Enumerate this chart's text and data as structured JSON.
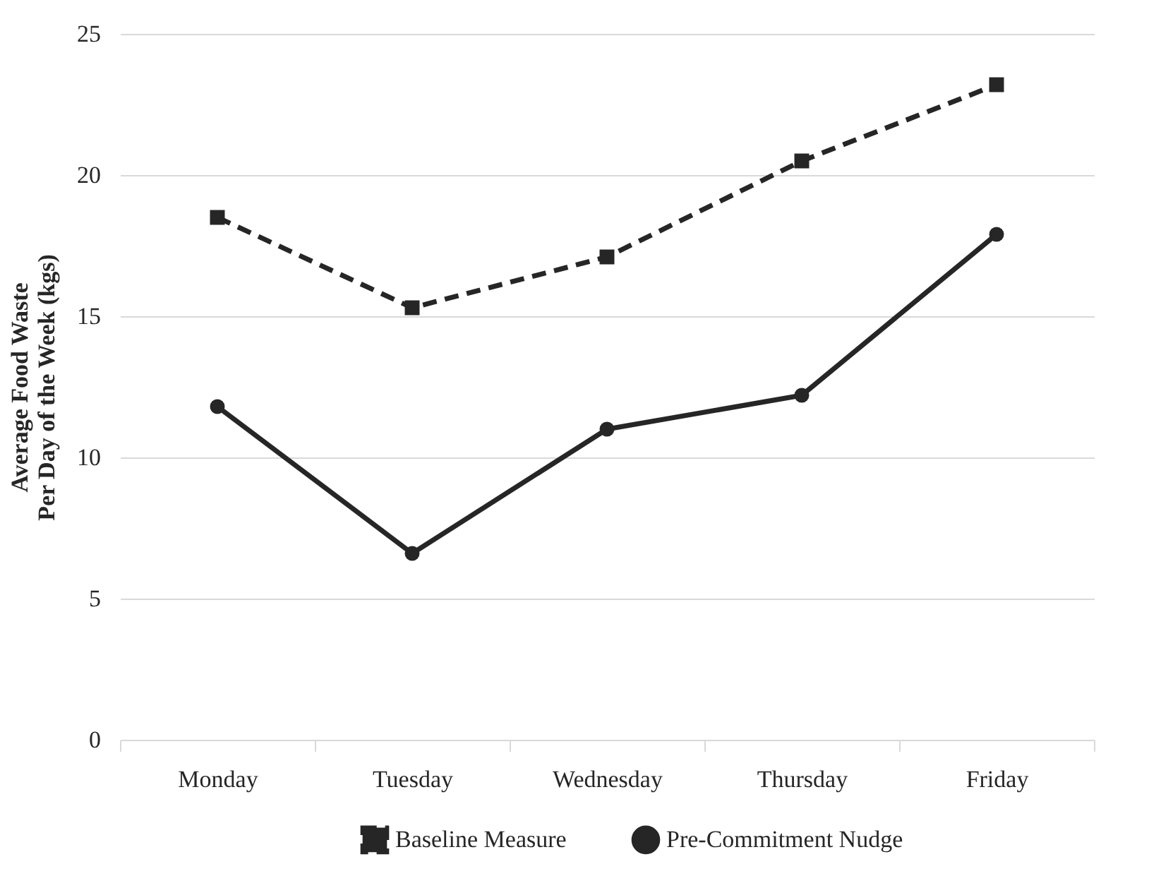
{
  "chart_data": {
    "type": "line",
    "ylabel": "Average Food Waste\nPer Day of the Week (kgs)",
    "categories": [
      "Monday",
      "Tuesday",
      "Wednesday",
      "Thursday",
      "Friday"
    ],
    "series": [
      {
        "name": "Baseline Measure",
        "color": "#262626",
        "values": [
          18.5,
          15.3,
          17.1,
          20.5,
          23.2
        ],
        "line_style": "dashed",
        "marker": "square"
      },
      {
        "name": "Pre-Commitment Nudge",
        "color": "#262626",
        "values": [
          11.8,
          6.6,
          11.0,
          12.2,
          17.9
        ],
        "line_style": "solid",
        "marker": "circle"
      }
    ],
    "ylim": [
      0,
      25
    ],
    "yticks": [
      0,
      5,
      10,
      15,
      20,
      25
    ],
    "grid": "y",
    "legend": "bottom"
  }
}
